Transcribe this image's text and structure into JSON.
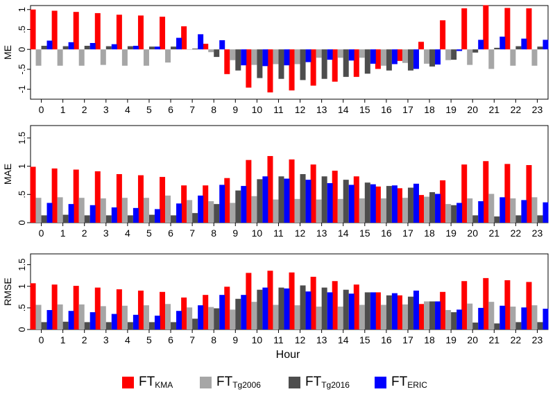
{
  "colors": {
    "FT_KMA": "#ff0000",
    "FT_Tg2006": "#a6a6a6",
    "FT_Tg2016": "#4d4d4d",
    "FT_ERIC": "#0000ff"
  },
  "legend": [
    {
      "main": "FT",
      "sub": "KMA",
      "color_key": "FT_KMA"
    },
    {
      "main": "FT",
      "sub": "Tg2006",
      "color_key": "FT_Tg2006"
    },
    {
      "main": "FT",
      "sub": "Tg2016",
      "color_key": "FT_Tg2016"
    },
    {
      "main": "FT",
      "sub": "ERIC",
      "color_key": "FT_ERIC"
    }
  ],
  "chart_data": [
    {
      "type": "bar",
      "ylabel": "ME",
      "xlabel": "",
      "ylim": [
        -1.25,
        1.1
      ],
      "yticks": [
        -1,
        -0.5,
        0,
        0.5,
        1
      ],
      "ytick_labels": [
        "-1",
        "-.5",
        "0",
        ".5",
        "1"
      ],
      "grid": false,
      "categories": [
        "0",
        "1",
        "2",
        "3",
        "4",
        "5",
        "6",
        "7",
        "8",
        "9",
        "10",
        "11",
        "12",
        "13",
        "14",
        "15",
        "16",
        "17",
        "18",
        "19",
        "20",
        "21",
        "22",
        "23"
      ],
      "series": [
        {
          "name": "FT_KMA",
          "values": [
            1.0,
            0.97,
            0.94,
            0.91,
            0.87,
            0.85,
            0.82,
            0.58,
            0.14,
            -0.62,
            -0.96,
            -1.08,
            -1.03,
            -0.91,
            -0.81,
            -0.69,
            -0.49,
            -0.29,
            0.19,
            0.73,
            1.03,
            1.11,
            1.04,
            1.03
          ]
        },
        {
          "name": "FT_Tg2006",
          "values": [
            -0.41,
            -0.41,
            -0.41,
            -0.39,
            -0.41,
            -0.41,
            -0.33,
            0.0,
            -0.07,
            -0.27,
            -0.39,
            -0.37,
            -0.37,
            -0.21,
            -0.21,
            -0.21,
            -0.41,
            -0.34,
            -0.36,
            -0.27,
            -0.39,
            -0.49,
            -0.41,
            -0.41
          ]
        },
        {
          "name": "FT_Tg2016",
          "values": [
            0.09,
            0.08,
            0.09,
            0.08,
            0.08,
            0.07,
            0.07,
            0.02,
            -0.19,
            -0.53,
            -0.72,
            -0.74,
            -0.77,
            -0.74,
            -0.69,
            -0.61,
            -0.53,
            -0.53,
            -0.43,
            -0.26,
            -0.08,
            0.04,
            0.08,
            0.07
          ]
        },
        {
          "name": "FT_ERIC",
          "values": [
            0.22,
            0.18,
            0.16,
            0.13,
            0.09,
            0.07,
            0.29,
            0.38,
            0.23,
            -0.4,
            -0.42,
            -0.4,
            -0.32,
            -0.26,
            -0.28,
            -0.36,
            -0.37,
            -0.49,
            -0.38,
            -0.04,
            0.24,
            0.32,
            0.27,
            0.24
          ]
        }
      ]
    },
    {
      "type": "bar",
      "ylabel": "MAE",
      "xlabel": "",
      "ylim": [
        0,
        1.72
      ],
      "yticks": [
        0,
        0.5,
        1,
        1.5
      ],
      "ytick_labels": [
        "0",
        ".5",
        "1",
        "1.5"
      ],
      "grid": false,
      "categories": [
        "0",
        "1",
        "2",
        "3",
        "4",
        "5",
        "6",
        "7",
        "8",
        "9",
        "10",
        "11",
        "12",
        "13",
        "14",
        "15",
        "16",
        "17",
        "18",
        "19",
        "20",
        "21",
        "22",
        "23"
      ],
      "series": [
        {
          "name": "FT_KMA",
          "values": [
            0.99,
            0.96,
            0.94,
            0.91,
            0.86,
            0.84,
            0.81,
            0.66,
            0.66,
            0.79,
            1.11,
            1.18,
            1.12,
            1.03,
            0.92,
            0.82,
            0.64,
            0.61,
            0.49,
            0.75,
            1.03,
            1.09,
            1.04,
            1.02
          ]
        },
        {
          "name": "FT_Tg2006",
          "values": [
            0.44,
            0.45,
            0.44,
            0.43,
            0.44,
            0.44,
            0.48,
            0.4,
            0.38,
            0.35,
            0.47,
            0.41,
            0.42,
            0.41,
            0.42,
            0.43,
            0.43,
            0.44,
            0.46,
            0.33,
            0.43,
            0.51,
            0.43,
            0.45
          ]
        },
        {
          "name": "FT_Tg2016",
          "values": [
            0.13,
            0.14,
            0.13,
            0.13,
            0.13,
            0.14,
            0.13,
            0.17,
            0.33,
            0.57,
            0.77,
            0.82,
            0.86,
            0.82,
            0.76,
            0.71,
            0.65,
            0.62,
            0.54,
            0.31,
            0.13,
            0.11,
            0.13,
            0.13
          ]
        },
        {
          "name": "FT_ERIC",
          "values": [
            0.35,
            0.33,
            0.31,
            0.27,
            0.26,
            0.24,
            0.34,
            0.48,
            0.67,
            0.65,
            0.82,
            0.78,
            0.76,
            0.7,
            0.67,
            0.68,
            0.66,
            0.69,
            0.51,
            0.35,
            0.38,
            0.45,
            0.4,
            0.36
          ]
        }
      ]
    },
    {
      "type": "bar",
      "ylabel": "RMSE",
      "xlabel": "Hour",
      "ylim": [
        0,
        1.75
      ],
      "yticks": [
        0,
        0.5,
        1,
        1.5
      ],
      "ytick_labels": [
        "0",
        ".5",
        "1",
        "1.5"
      ],
      "grid": false,
      "categories": [
        "0",
        "1",
        "2",
        "3",
        "4",
        "5",
        "6",
        "7",
        "8",
        "9",
        "10",
        "11",
        "12",
        "13",
        "14",
        "15",
        "16",
        "17",
        "18",
        "19",
        "20",
        "21",
        "22",
        "23"
      ],
      "series": [
        {
          "name": "FT_KMA",
          "values": [
            1.07,
            1.04,
            1.01,
            0.97,
            0.93,
            0.9,
            0.87,
            0.74,
            0.8,
            0.99,
            1.31,
            1.36,
            1.32,
            1.22,
            1.12,
            1.04,
            0.86,
            0.79,
            0.59,
            0.87,
            1.12,
            1.19,
            1.14,
            1.1
          ]
        },
        {
          "name": "FT_Tg2006",
          "values": [
            0.57,
            0.58,
            0.58,
            0.54,
            0.55,
            0.56,
            0.59,
            0.51,
            0.52,
            0.46,
            0.64,
            0.57,
            0.56,
            0.53,
            0.53,
            0.57,
            0.57,
            0.58,
            0.65,
            0.45,
            0.6,
            0.64,
            0.53,
            0.56
          ]
        },
        {
          "name": "FT_Tg2016",
          "values": [
            0.17,
            0.18,
            0.17,
            0.17,
            0.17,
            0.17,
            0.17,
            0.25,
            0.49,
            0.71,
            0.92,
            0.97,
            1.02,
            0.97,
            0.92,
            0.86,
            0.79,
            0.76,
            0.65,
            0.4,
            0.16,
            0.14,
            0.17,
            0.17
          ]
        },
        {
          "name": "FT_ERIC",
          "values": [
            0.45,
            0.43,
            0.4,
            0.36,
            0.34,
            0.32,
            0.43,
            0.56,
            0.8,
            0.8,
            0.97,
            0.95,
            0.88,
            0.86,
            0.83,
            0.86,
            0.84,
            0.9,
            0.65,
            0.46,
            0.5,
            0.55,
            0.51,
            0.48
          ]
        }
      ]
    }
  ]
}
